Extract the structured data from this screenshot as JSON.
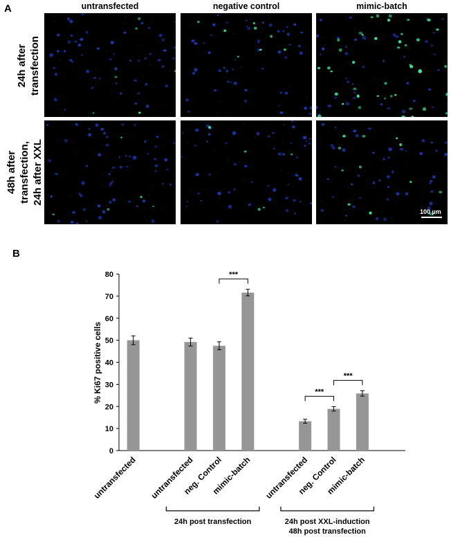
{
  "panel_a": {
    "letter": "A",
    "columns": [
      "untransfected",
      "negative control",
      "mimic-batch"
    ],
    "rows": [
      [
        "24h after",
        "transfection"
      ],
      [
        "48h after",
        "transfection,",
        "24h after XXL"
      ]
    ],
    "scale_bar": "100 µm",
    "colors": {
      "background": "#000000",
      "nuclei": "#1f3fc8",
      "ki67": "#3fe89a"
    }
  },
  "panel_b": {
    "letter": "B",
    "group_labels": [
      [
        "24h post transfection"
      ],
      [
        "24h post XXL-induction",
        "48h post transfection"
      ]
    ],
    "significance": [
      "***",
      "***",
      "***"
    ]
  },
  "chart_data": {
    "type": "bar",
    "ylabel": "% Ki67 positive cells",
    "xlabel": "",
    "ylim": [
      0,
      80
    ],
    "yticks": [
      0,
      10,
      20,
      30,
      40,
      50,
      60,
      70,
      80
    ],
    "bar_color": "#969696",
    "grid": false,
    "categories": [
      "untransfected",
      "untransfected",
      "neg. Control",
      "mimic-batch",
      "untransfected",
      "neg. Control",
      "mimic-batch"
    ],
    "values": [
      50.0,
      49.2,
      47.5,
      71.6,
      13.3,
      18.9,
      25.9
    ],
    "errors": [
      2.0,
      1.8,
      1.8,
      1.5,
      0.9,
      1.0,
      1.2
    ],
    "groups": [
      {
        "label": "24h post transfection",
        "bars": [
          1,
          2,
          3
        ]
      },
      {
        "label": "24h post XXL-induction 48h post transfection",
        "bars": [
          4,
          5,
          6
        ]
      }
    ],
    "comparisons": [
      {
        "from": 2,
        "to": 3,
        "label": "***"
      },
      {
        "from": 4,
        "to": 5,
        "label": "***"
      },
      {
        "from": 5,
        "to": 6,
        "label": "***"
      }
    ]
  }
}
